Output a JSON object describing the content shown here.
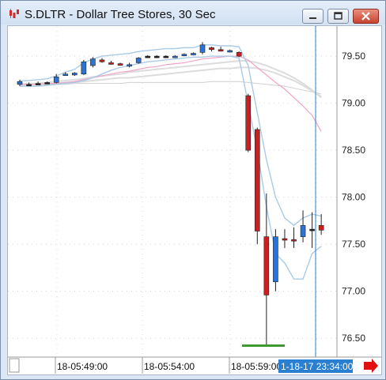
{
  "window": {
    "title": "S.DLTR - Dollar Tree Stores, 30 Sec",
    "icon": "candlestick-chart-icon",
    "buttons": [
      "minimize-icon",
      "maximize-icon",
      "close-icon"
    ]
  },
  "colors": {
    "bullish": "#2b74d6",
    "bearish": "#cc1f1f",
    "flat": "#222222",
    "band": "#a9cbe8",
    "ma_pink": "#f0a3c6",
    "ma_gray": "#dcdcdc",
    "cursor_line": "#2a7fd0",
    "cursor_label_bg": "#2a7fd0",
    "scroll_arrow": "#e01010",
    "volume_bar": "#3c9a2f"
  },
  "chart_data": {
    "type": "candlestick",
    "title": "S.DLTR - Dollar Tree Stores, 30 Sec",
    "ylim": [
      76.3,
      79.82
    ],
    "y_ticks": [
      "79.50",
      "79.00",
      "78.50",
      "78.00",
      "77.50",
      "77.00",
      "76.50"
    ],
    "x_ticks": [
      "18-05:49:00",
      "18-05:54:00",
      "18-05:59:00"
    ],
    "cursor_time_label": "1-18-17 23:34:00",
    "grid": true,
    "candles": [
      {
        "o": 79.2,
        "h": 79.25,
        "l": 79.18,
        "c": 79.23
      },
      {
        "o": 79.2,
        "h": 79.22,
        "l": 79.19,
        "c": 79.2
      },
      {
        "o": 79.21,
        "h": 79.23,
        "l": 79.2,
        "c": 79.21
      },
      {
        "o": 79.22,
        "h": 79.23,
        "l": 79.21,
        "c": 79.22
      },
      {
        "o": 79.22,
        "h": 79.31,
        "l": 79.21,
        "c": 79.28
      },
      {
        "o": 79.3,
        "h": 79.33,
        "l": 79.29,
        "c": 79.31
      },
      {
        "o": 79.3,
        "h": 79.33,
        "l": 79.29,
        "c": 79.32
      },
      {
        "o": 79.31,
        "h": 79.46,
        "l": 79.3,
        "c": 79.44
      },
      {
        "o": 79.4,
        "h": 79.49,
        "l": 79.38,
        "c": 79.47
      },
      {
        "o": 79.46,
        "h": 79.48,
        "l": 79.43,
        "c": 79.44
      },
      {
        "o": 79.43,
        "h": 79.45,
        "l": 79.41,
        "c": 79.42
      },
      {
        "o": 79.42,
        "h": 79.43,
        "l": 79.4,
        "c": 79.41
      },
      {
        "o": 79.4,
        "h": 79.43,
        "l": 79.38,
        "c": 79.41
      },
      {
        "o": 79.43,
        "h": 79.49,
        "l": 79.42,
        "c": 79.48
      },
      {
        "o": 79.5,
        "h": 79.51,
        "l": 79.48,
        "c": 79.5
      },
      {
        "o": 79.5,
        "h": 79.51,
        "l": 79.49,
        "c": 79.5
      },
      {
        "o": 79.5,
        "h": 79.51,
        "l": 79.49,
        "c": 79.5
      },
      {
        "o": 79.49,
        "h": 79.51,
        "l": 79.48,
        "c": 79.5
      },
      {
        "o": 79.51,
        "h": 79.53,
        "l": 79.5,
        "c": 79.52
      },
      {
        "o": 79.52,
        "h": 79.54,
        "l": 79.51,
        "c": 79.53
      },
      {
        "o": 79.54,
        "h": 79.65,
        "l": 79.52,
        "c": 79.62
      },
      {
        "o": 79.59,
        "h": 79.6,
        "l": 79.55,
        "c": 79.57
      },
      {
        "o": 79.57,
        "h": 79.6,
        "l": 79.55,
        "c": 79.56
      },
      {
        "o": 79.55,
        "h": 79.57,
        "l": 79.54,
        "c": 79.56
      },
      {
        "o": 79.54,
        "h": 79.55,
        "l": 79.49,
        "c": 79.5
      },
      {
        "o": 79.08,
        "h": 79.1,
        "l": 78.48,
        "c": 78.5
      },
      {
        "o": 78.72,
        "h": 78.74,
        "l": 77.5,
        "c": 77.64
      },
      {
        "o": 77.58,
        "h": 78.04,
        "l": 76.43,
        "c": 76.96
      },
      {
        "o": 77.1,
        "h": 77.66,
        "l": 77.0,
        "c": 77.58
      },
      {
        "o": 77.56,
        "h": 77.66,
        "l": 77.46,
        "c": 77.55
      },
      {
        "o": 77.55,
        "h": 77.68,
        "l": 77.46,
        "c": 77.54
      },
      {
        "o": 77.58,
        "h": 77.86,
        "l": 77.52,
        "c": 77.7
      },
      {
        "o": 77.66,
        "h": 77.84,
        "l": 77.46,
        "c": 77.66
      },
      {
        "o": 77.7,
        "h": 77.82,
        "l": 77.6,
        "c": 77.65
      }
    ],
    "band_upper": [
      79.24,
      79.24,
      79.25,
      79.26,
      79.29,
      79.33,
      79.36,
      79.43,
      79.47,
      79.5,
      79.51,
      79.52,
      79.53,
      79.55,
      79.56,
      79.57,
      79.58,
      79.58,
      79.59,
      79.59,
      79.62,
      79.62,
      79.61,
      79.61,
      79.6,
      79.4,
      78.9,
      78.4,
      78.0,
      77.78,
      77.7,
      77.78,
      77.82,
      77.8
    ],
    "band_lower": [
      79.18,
      79.18,
      79.18,
      79.19,
      79.2,
      79.21,
      79.22,
      79.24,
      79.27,
      79.31,
      79.35,
      79.38,
      79.4,
      79.42,
      79.44,
      79.45,
      79.46,
      79.47,
      79.48,
      79.49,
      79.49,
      79.5,
      79.5,
      79.5,
      79.48,
      79.0,
      78.5,
      77.9,
      77.4,
      77.3,
      77.13,
      77.13,
      77.4,
      77.48
    ],
    "ma_pink": [
      79.2,
      79.2,
      79.2,
      79.21,
      79.21,
      79.22,
      79.23,
      79.25,
      79.27,
      79.29,
      79.31,
      79.33,
      79.34,
      79.36,
      79.38,
      79.39,
      79.41,
      79.42,
      79.43,
      79.45,
      79.47,
      79.48,
      79.49,
      79.5,
      79.5,
      79.46,
      79.38,
      79.3,
      79.22,
      79.15,
      79.06,
      78.97,
      78.87,
      78.7
    ],
    "ma_gray_1": [
      79.2,
      79.21,
      79.21,
      79.22,
      79.23,
      79.24,
      79.25,
      79.26,
      79.28,
      79.29,
      79.3,
      79.31,
      79.33,
      79.34,
      79.35,
      79.36,
      79.37,
      79.38,
      79.39,
      79.4,
      79.41,
      79.42,
      79.43,
      79.44,
      79.45,
      79.45,
      79.43,
      79.4,
      79.36,
      79.32,
      79.27,
      79.21,
      79.14,
      79.06
    ],
    "ma_gray_2": [
      79.19,
      79.19,
      79.2,
      79.2,
      79.21,
      79.22,
      79.22,
      79.23,
      79.24,
      79.25,
      79.26,
      79.27,
      79.27,
      79.28,
      79.29,
      79.3,
      79.31,
      79.32,
      79.33,
      79.34,
      79.35,
      79.36,
      79.37,
      79.37,
      79.38,
      79.38,
      79.37,
      79.35,
      79.32,
      79.28,
      79.24,
      79.19,
      79.13,
      79.07
    ],
    "ma_gray_3": [
      79.2,
      79.2,
      79.2,
      79.2,
      79.2,
      79.2,
      79.21,
      79.21,
      79.21,
      79.21,
      79.21,
      79.21,
      79.22,
      79.22,
      79.22,
      79.22,
      79.22,
      79.22,
      79.22,
      79.22,
      79.22,
      79.23,
      79.23,
      79.23,
      79.23,
      79.22,
      79.21,
      79.2,
      79.19,
      79.18,
      79.16,
      79.14,
      79.12,
      79.1
    ]
  }
}
